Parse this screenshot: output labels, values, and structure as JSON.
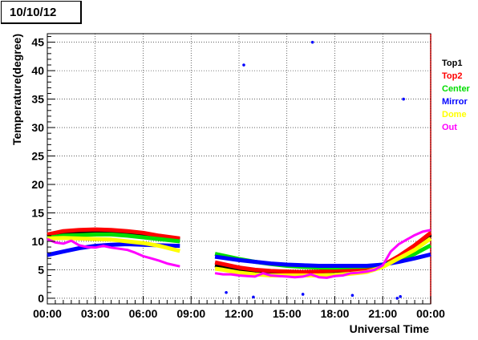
{
  "chart_data": {
    "type": "line",
    "title": "10/10/12",
    "xlabel": "Universal Time",
    "ylabel": "Temperature(degree)",
    "x_tick_labels": [
      "00:00",
      "03:00",
      "06:00",
      "09:00",
      "12:00",
      "15:00",
      "18:00",
      "21:00",
      "00:00"
    ],
    "y_ticks": [
      0,
      5,
      10,
      15,
      20,
      25,
      30,
      35,
      40,
      45
    ],
    "xlim": [
      0,
      24
    ],
    "ylim": [
      -1,
      46.5
    ],
    "grid": true,
    "legend_position": "right",
    "series": [
      {
        "name": "Top1",
        "color": "#000000",
        "segments": [
          [
            [
              0,
              11.0
            ],
            [
              1,
              11.5
            ],
            [
              2,
              11.7
            ],
            [
              3,
              11.8
            ],
            [
              4,
              11.7
            ],
            [
              5,
              11.5
            ],
            [
              6,
              11.2
            ],
            [
              7,
              10.8
            ],
            [
              8.3,
              10.3
            ]
          ],
          [
            [
              10.5,
              5.8
            ],
            [
              11,
              5.5
            ],
            [
              12,
              5.0
            ],
            [
              13,
              4.6
            ],
            [
              14,
              4.5
            ],
            [
              15,
              4.5
            ],
            [
              16,
              4.5
            ],
            [
              17,
              4.6
            ],
            [
              18,
              4.8
            ],
            [
              19,
              4.9
            ],
            [
              20,
              5.0
            ],
            [
              21,
              5.6
            ],
            [
              22,
              7.0
            ],
            [
              23,
              9.0
            ],
            [
              24,
              11.2
            ]
          ]
        ]
      },
      {
        "name": "Top2",
        "color": "#ff0000",
        "segments": [
          [
            [
              0,
              11.2
            ],
            [
              1,
              11.8
            ],
            [
              2,
              12.0
            ],
            [
              3,
              12.1
            ],
            [
              4,
              12.0
            ],
            [
              5,
              11.8
            ],
            [
              6,
              11.5
            ],
            [
              7,
              11.0
            ],
            [
              8.3,
              10.5
            ]
          ],
          [
            [
              10.5,
              6.3
            ],
            [
              11,
              6.0
            ],
            [
              12,
              5.4
            ],
            [
              13,
              5.0
            ],
            [
              14,
              4.8
            ],
            [
              15,
              4.7
            ],
            [
              16,
              4.6
            ],
            [
              17,
              4.7
            ],
            [
              18,
              4.9
            ],
            [
              19,
              5.0
            ],
            [
              20,
              5.1
            ],
            [
              21,
              5.8
            ],
            [
              22,
              7.4
            ],
            [
              23,
              9.3
            ],
            [
              24,
              11.5
            ]
          ]
        ]
      },
      {
        "name": "Center",
        "color": "#00dd00",
        "segments": [
          [
            [
              0,
              10.6
            ],
            [
              1,
              11.0
            ],
            [
              2,
              11.1
            ],
            [
              3,
              11.2
            ],
            [
              4,
              11.2
            ],
            [
              5,
              11.0
            ],
            [
              6,
              10.7
            ],
            [
              7,
              10.4
            ],
            [
              8.3,
              10.0
            ]
          ],
          [
            [
              10.5,
              7.8
            ],
            [
              11,
              7.5
            ],
            [
              12,
              6.9
            ],
            [
              13,
              6.4
            ],
            [
              14,
              6.0
            ],
            [
              15,
              5.7
            ],
            [
              16,
              5.5
            ],
            [
              17,
              5.4
            ],
            [
              18,
              5.4
            ],
            [
              19,
              5.5
            ],
            [
              20,
              5.6
            ],
            [
              21,
              5.9
            ],
            [
              22,
              6.6
            ],
            [
              23,
              7.8
            ],
            [
              24,
              9.3
            ]
          ]
        ]
      },
      {
        "name": "Mirror",
        "color": "#0000ff",
        "segments": [
          [
            [
              0,
              7.6
            ],
            [
              1,
              8.2
            ],
            [
              2,
              8.8
            ],
            [
              3,
              9.2
            ],
            [
              4,
              9.4
            ],
            [
              5,
              9.5
            ],
            [
              6,
              9.4
            ],
            [
              7,
              9.3
            ],
            [
              8.3,
              9.2
            ]
          ],
          [
            [
              10.5,
              7.3
            ],
            [
              11,
              7.1
            ],
            [
              12,
              6.7
            ],
            [
              13,
              6.4
            ],
            [
              14,
              6.1
            ],
            [
              15,
              5.9
            ],
            [
              16,
              5.8
            ],
            [
              17,
              5.7
            ],
            [
              18,
              5.7
            ],
            [
              19,
              5.7
            ],
            [
              20,
              5.7
            ],
            [
              21,
              5.9
            ],
            [
              22,
              6.4
            ],
            [
              23,
              7.0
            ],
            [
              24,
              7.7
            ]
          ]
        ]
      },
      {
        "name": "Dome",
        "color": "#ffff00",
        "segments": [
          [
            [
              0,
              10.5
            ],
            [
              1,
              10.6
            ],
            [
              2,
              10.5
            ],
            [
              3,
              10.4
            ],
            [
              4,
              10.3
            ],
            [
              5,
              10.0
            ],
            [
              6,
              9.7
            ],
            [
              7,
              9.2
            ],
            [
              8.3,
              8.3
            ]
          ],
          [
            [
              10.5,
              5.2
            ],
            [
              11,
              5.0
            ],
            [
              12,
              4.5
            ],
            [
              13,
              4.2
            ],
            [
              14,
              4.0
            ],
            [
              15,
              4.0
            ],
            [
              16,
              4.0
            ],
            [
              17,
              4.0
            ],
            [
              18,
              4.1
            ],
            [
              19,
              4.3
            ],
            [
              20,
              4.6
            ],
            [
              21,
              5.5
            ],
            [
              22,
              7.0
            ],
            [
              23,
              8.5
            ],
            [
              24,
              10.5
            ]
          ]
        ]
      },
      {
        "name": "Out",
        "color": "#ff00ff",
        "segments": [
          [
            [
              0,
              10.4
            ],
            [
              0.5,
              9.8
            ],
            [
              1,
              9.6
            ],
            [
              1.5,
              10.1
            ],
            [
              2,
              9.3
            ],
            [
              2.5,
              9.0
            ],
            [
              3,
              8.9
            ],
            [
              3.5,
              9.2
            ],
            [
              4,
              8.9
            ],
            [
              4.5,
              8.7
            ],
            [
              5,
              8.5
            ],
            [
              5.5,
              8.0
            ],
            [
              6,
              7.4
            ],
            [
              6.5,
              7.0
            ],
            [
              7,
              6.6
            ],
            [
              7.5,
              6.1
            ],
            [
              8.3,
              5.6
            ]
          ],
          [
            [
              10.5,
              4.4
            ],
            [
              11,
              4.2
            ],
            [
              11.5,
              4.2
            ],
            [
              12,
              4.0
            ],
            [
              12.5,
              3.9
            ],
            [
              13,
              3.8
            ],
            [
              13.5,
              4.4
            ],
            [
              14,
              4.0
            ],
            [
              14.5,
              3.9
            ],
            [
              15,
              3.8
            ],
            [
              15.5,
              3.7
            ],
            [
              16,
              3.8
            ],
            [
              16.5,
              4.2
            ],
            [
              17,
              3.7
            ],
            [
              17.5,
              3.6
            ],
            [
              18,
              3.9
            ],
            [
              18.5,
              4.0
            ],
            [
              19,
              4.4
            ],
            [
              19.5,
              4.5
            ],
            [
              20,
              4.7
            ],
            [
              20.5,
              5.0
            ],
            [
              21,
              5.8
            ],
            [
              21.5,
              8.2
            ],
            [
              22,
              9.5
            ],
            [
              22.5,
              10.3
            ],
            [
              23,
              11.1
            ],
            [
              23.5,
              11.7
            ],
            [
              24,
              12.0
            ]
          ]
        ]
      }
    ],
    "mirror_outliers": [
      [
        12.3,
        41
      ],
      [
        16.6,
        45
      ],
      [
        22.3,
        35
      ],
      [
        11.2,
        1.0
      ],
      [
        12.9,
        0.2
      ],
      [
        16.0,
        0.7
      ],
      [
        19.1,
        0.5
      ],
      [
        21.9,
        0.0
      ],
      [
        22.1,
        0.3
      ]
    ]
  }
}
